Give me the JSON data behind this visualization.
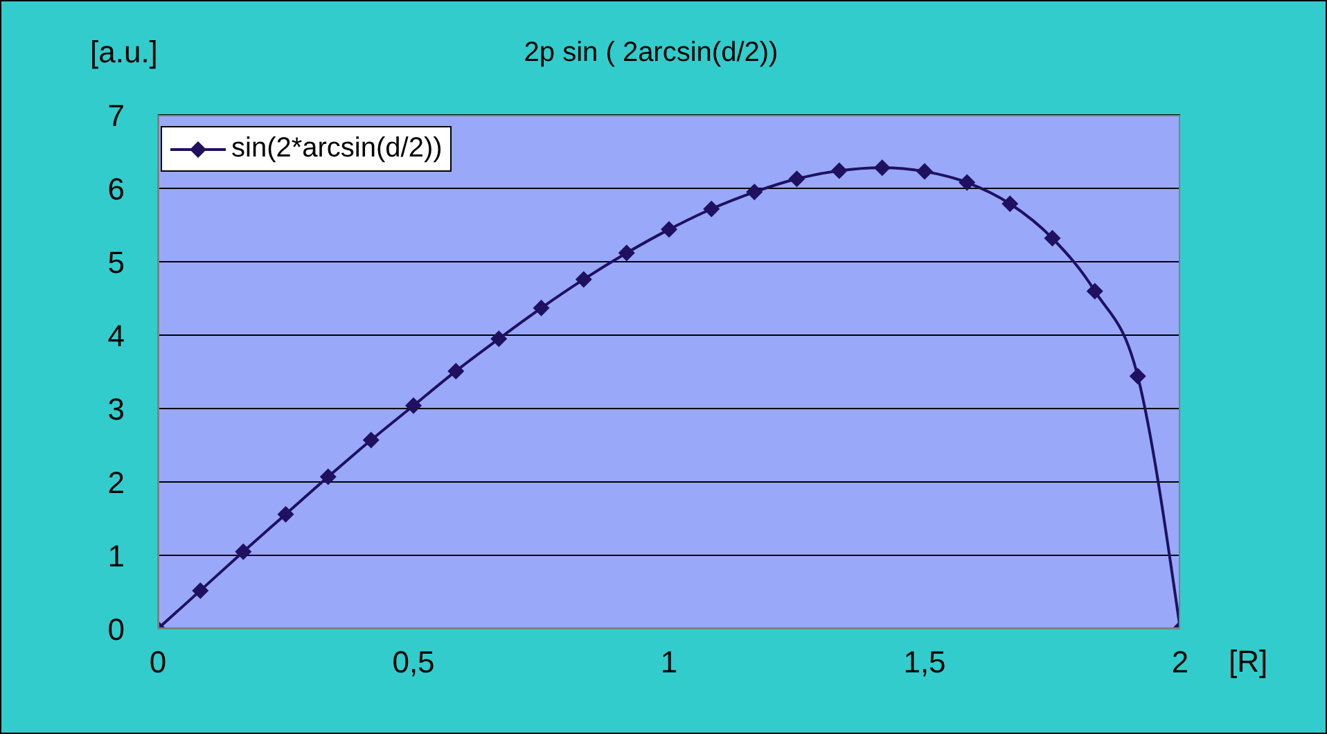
{
  "chart_data": {
    "type": "line",
    "title": "2p sin ( 2arcsin(d/2))",
    "xlabel": "[R]",
    "ylabel": "[a.u.]",
    "x": [
      0,
      0.083,
      0.167,
      0.25,
      0.333,
      0.417,
      0.5,
      0.583,
      0.667,
      0.75,
      0.833,
      0.917,
      1,
      1.083,
      1.167,
      1.25,
      1.333,
      1.417,
      1.5,
      1.583,
      1.667,
      1.75,
      1.833,
      1.917,
      2
    ],
    "series": [
      {
        "name": "sin(2*arcsin(d/2))",
        "color": "#1f1060",
        "values": [
          0,
          0.52,
          1.05,
          1.56,
          2.07,
          2.57,
          3.04,
          3.51,
          3.95,
          4.37,
          4.76,
          5.12,
          5.44,
          5.72,
          5.95,
          6.13,
          6.24,
          6.28,
          6.23,
          6.08,
          5.79,
          5.32,
          4.6,
          3.44,
          0
        ]
      }
    ],
    "xlim": [
      0,
      2
    ],
    "xticks": [
      0,
      {
        "value": 0.5,
        "label": "0,5"
      },
      1,
      {
        "value": 1.5,
        "label": "1,5"
      },
      2
    ],
    "ylim": [
      0,
      7
    ],
    "yticks": [
      0,
      1,
      2,
      3,
      4,
      5,
      6,
      7
    ],
    "grid": "y",
    "legend": "top left",
    "marker": "diamond",
    "line_style": "solid"
  }
}
